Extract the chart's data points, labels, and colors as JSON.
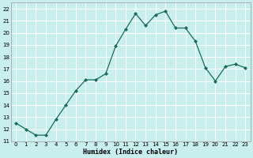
{
  "x": [
    0,
    1,
    2,
    3,
    4,
    5,
    6,
    7,
    8,
    9,
    10,
    11,
    12,
    13,
    14,
    15,
    16,
    17,
    18,
    19,
    20,
    21,
    22,
    23
  ],
  "y": [
    12.5,
    12.0,
    11.5,
    11.5,
    12.8,
    14.0,
    15.2,
    16.1,
    16.1,
    16.6,
    18.9,
    20.3,
    21.6,
    20.6,
    21.5,
    21.8,
    20.4,
    20.4,
    19.3,
    17.1,
    16.0,
    17.2,
    17.4,
    17.1
  ],
  "line_color": "#1a6b5a",
  "marker": "D",
  "marker_size": 2,
  "bg_color": "#c8eeee",
  "grid_color": "#ffffff",
  "grid_minor_color": "#ddf5f5",
  "xlabel": "Humidex (Indice chaleur)",
  "ylabel_ticks": [
    11,
    12,
    13,
    14,
    15,
    16,
    17,
    18,
    19,
    20,
    21,
    22
  ],
  "xlim": [
    -0.5,
    23.5
  ],
  "ylim": [
    11,
    22.5
  ]
}
